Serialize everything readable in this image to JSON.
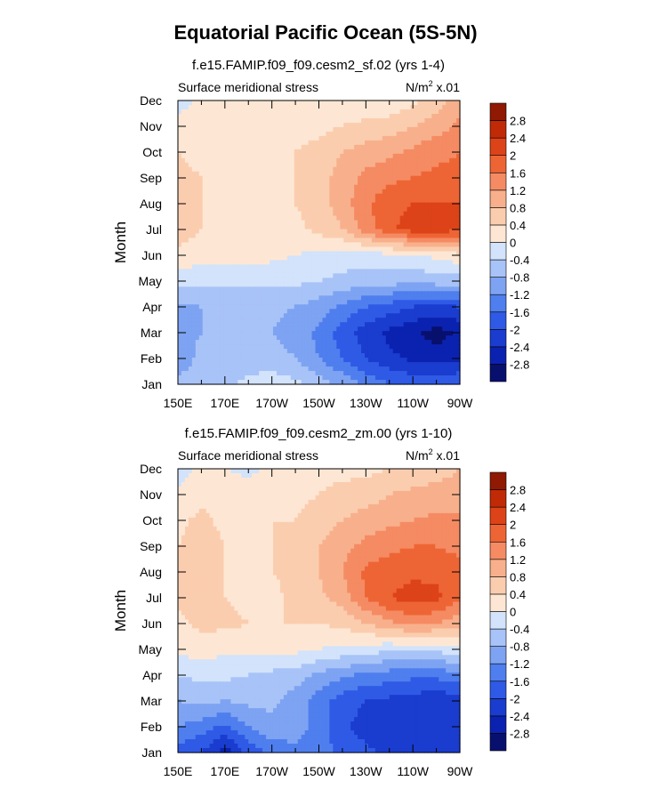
{
  "figure": {
    "title": "Equatorial Pacific Ocean (5S-5N)"
  },
  "palette": [
    "#08106e",
    "#0b22b0",
    "#1a3ccf",
    "#2f5ae6",
    "#4f7eee",
    "#7da3f2",
    "#a8c3f7",
    "#d2e3fb",
    "#fde7d4",
    "#fbcdaf",
    "#f8b08c",
    "#f58b63",
    "#ee6535",
    "#dd4318",
    "#c12a06",
    "#8f1902"
  ],
  "chart_data": [
    {
      "type": "heatmap",
      "title": "f.e15.FAMIP.f09_f09.cesm2_sf.02 (yrs 1-4)",
      "left_label": "Surface meridional stress",
      "units_label": {
        "base": "N/m",
        "exponent": "2",
        "suffix": " x.01"
      },
      "ylabel": "Month",
      "xlabel": "",
      "xticks": [
        "150E",
        "170E",
        "170W",
        "150W",
        "130W",
        "110W",
        "90W"
      ],
      "yticks": [
        "Jan",
        "Feb",
        "Mar",
        "Apr",
        "May",
        "Jun",
        "Jul",
        "Aug",
        "Sep",
        "Oct",
        "Nov",
        "Dec"
      ],
      "x_range_deg_east": [
        150,
        270
      ],
      "month_range": [
        1,
        12
      ],
      "colorbar_levels": [
        "-2.8",
        "-2.4",
        "-2",
        "-1.6",
        "-1.2",
        "-0.8",
        "-0.4",
        "0",
        "0.4",
        "0.8",
        "1.2",
        "1.6",
        "2",
        "2.4",
        "2.8"
      ],
      "grid_lon": [
        150,
        160,
        170,
        180,
        190,
        200,
        210,
        220,
        230,
        240,
        250,
        260,
        270
      ],
      "values": [
        [
          -0.6,
          -0.5,
          -0.5,
          -0.3,
          -0.2,
          -0.3,
          -0.6,
          -0.9,
          -1.3,
          -1.6,
          -1.7,
          -1.7,
          -1.6
        ],
        [
          -1.2,
          -0.6,
          -0.6,
          -0.6,
          -0.6,
          -0.8,
          -1.2,
          -1.6,
          -2.0,
          -2.3,
          -2.5,
          -2.6,
          -2.5
        ],
        [
          -1.0,
          -0.8,
          -0.8,
          -0.8,
          -0.8,
          -1.0,
          -1.3,
          -1.8,
          -2.2,
          -2.5,
          -2.7,
          -3.0,
          -2.7
        ],
        [
          -0.9,
          -0.8,
          -0.7,
          -0.7,
          -0.7,
          -0.8,
          -1.0,
          -1.3,
          -1.6,
          -1.8,
          -2.0,
          -2.1,
          -2.0
        ],
        [
          -0.3,
          -0.3,
          -0.3,
          -0.3,
          -0.3,
          -0.3,
          -0.4,
          -0.5,
          -0.6,
          -0.6,
          -0.7,
          -0.6,
          -0.6
        ],
        [
          0.3,
          0.2,
          0.2,
          0.2,
          0.1,
          0.0,
          -0.1,
          -0.2,
          -0.2,
          -0.1,
          -0.1,
          0.1,
          0.3
        ],
        [
          0.6,
          0.4,
          0.3,
          0.3,
          0.3,
          0.3,
          0.5,
          0.8,
          1.4,
          1.9,
          2.2,
          2.3,
          2.0
        ],
        [
          0.6,
          0.4,
          0.3,
          0.3,
          0.3,
          0.4,
          0.6,
          1.0,
          1.5,
          1.9,
          2.0,
          2.0,
          2.0
        ],
        [
          0.5,
          0.4,
          0.4,
          0.3,
          0.3,
          0.4,
          0.6,
          1.0,
          1.3,
          1.5,
          1.6,
          1.7,
          1.7
        ],
        [
          0.4,
          0.3,
          0.3,
          0.3,
          0.3,
          0.4,
          0.5,
          0.8,
          1.0,
          1.1,
          1.3,
          1.5,
          1.6
        ],
        [
          0.2,
          0.3,
          0.3,
          0.3,
          0.3,
          0.3,
          0.3,
          0.4,
          0.5,
          0.6,
          0.8,
          1.0,
          1.3
        ],
        [
          -0.2,
          0.1,
          0.2,
          0.2,
          0.2,
          0.2,
          0.2,
          0.2,
          0.1,
          0.1,
          0.3,
          0.6,
          1.0
        ]
      ]
    },
    {
      "type": "heatmap",
      "title": "f.e15.FAMIP.f09_f09.cesm2_zm.00 (yrs 1-10)",
      "left_label": "Surface meridional stress",
      "units_label": {
        "base": "N/m",
        "exponent": "2",
        "suffix": " x.01"
      },
      "ylabel": "Month",
      "xlabel": "",
      "xticks": [
        "150E",
        "170E",
        "170W",
        "150W",
        "130W",
        "110W",
        "90W"
      ],
      "yticks": [
        "Jan",
        "Feb",
        "Mar",
        "Apr",
        "May",
        "Jun",
        "Jul",
        "Aug",
        "Sep",
        "Oct",
        "Nov",
        "Dec"
      ],
      "x_range_deg_east": [
        150,
        270
      ],
      "month_range": [
        1,
        12
      ],
      "colorbar_levels": [
        "-2.8",
        "-2.4",
        "-2",
        "-1.6",
        "-1.2",
        "-0.8",
        "-0.4",
        "0",
        "0.4",
        "0.8",
        "1.2",
        "1.6",
        "2",
        "2.4",
        "2.8"
      ],
      "grid_lon": [
        150,
        160,
        170,
        180,
        190,
        200,
        210,
        220,
        230,
        240,
        250,
        260,
        270
      ],
      "values": [
        [
          -1.8,
          -2.0,
          -2.6,
          -1.9,
          -1.5,
          -1.3,
          -1.4,
          -1.7,
          -1.9,
          -2.1,
          -2.2,
          -2.3,
          -2.2
        ],
        [
          -1.2,
          -1.4,
          -1.7,
          -1.2,
          -0.9,
          -1.0,
          -1.4,
          -1.9,
          -2.2,
          -2.3,
          -2.4,
          -2.3,
          -2.2
        ],
        [
          -0.8,
          -0.7,
          -0.8,
          -0.7,
          -0.7,
          -1.0,
          -1.4,
          -1.8,
          -2.0,
          -2.1,
          -2.2,
          -2.3,
          -2.2
        ],
        [
          -0.4,
          -0.3,
          -0.3,
          -0.4,
          -0.5,
          -0.6,
          -0.9,
          -1.1,
          -1.3,
          -1.4,
          -1.5,
          -1.5,
          -1.3
        ],
        [
          0.1,
          0.2,
          0.1,
          0.1,
          0.1,
          0.1,
          0.0,
          -0.1,
          -0.2,
          -0.3,
          -0.3,
          -0.3,
          -0.1
        ],
        [
          0.3,
          0.5,
          0.5,
          0.4,
          0.4,
          0.4,
          0.4,
          0.5,
          0.8,
          1.1,
          1.3,
          1.2,
          0.9
        ],
        [
          0.5,
          0.7,
          0.4,
          0.3,
          0.3,
          0.5,
          0.7,
          1.0,
          1.6,
          2.0,
          2.2,
          2.1,
          1.7
        ],
        [
          0.5,
          0.6,
          0.4,
          0.3,
          0.4,
          0.5,
          0.8,
          1.2,
          1.7,
          1.8,
          1.9,
          1.9,
          1.7
        ],
        [
          0.4,
          0.6,
          0.4,
          0.4,
          0.4,
          0.6,
          0.8,
          1.1,
          1.3,
          1.5,
          1.6,
          1.6,
          1.5
        ],
        [
          0.3,
          0.5,
          0.3,
          0.3,
          0.4,
          0.4,
          0.6,
          0.8,
          1.0,
          1.1,
          1.2,
          1.3,
          1.3
        ],
        [
          0.1,
          0.3,
          0.2,
          0.2,
          0.2,
          0.3,
          0.4,
          0.5,
          0.6,
          0.8,
          0.9,
          1.0,
          1.0
        ],
        [
          -0.2,
          0.1,
          0.0,
          -0.1,
          0.1,
          0.2,
          0.3,
          0.3,
          0.3,
          0.4,
          0.5,
          0.6,
          0.8
        ]
      ]
    }
  ]
}
